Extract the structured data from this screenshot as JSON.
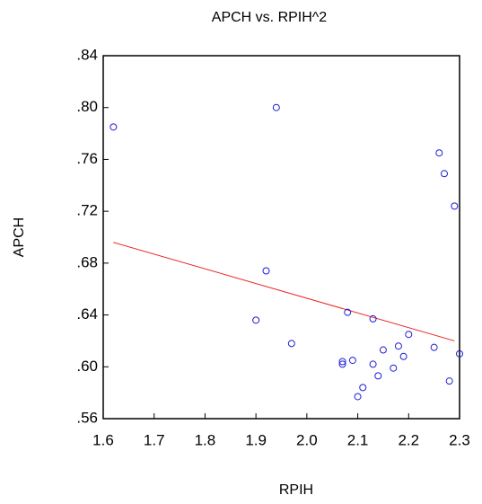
{
  "chart_data": {
    "type": "scatter",
    "title": "APCH vs. RPIH^2",
    "x_label": "RPIH",
    "y_label": "APCH",
    "x": [
      1.62,
      1.94,
      2.26,
      2.27,
      2.29,
      1.92,
      1.9,
      1.97,
      2.08,
      2.13,
      2.07,
      2.07,
      2.09,
      2.1,
      2.11,
      2.13,
      2.14,
      2.15,
      2.17,
      2.18,
      2.19,
      2.2,
      2.25,
      2.28,
      2.3
    ],
    "y": [
      0.785,
      0.8,
      0.765,
      0.749,
      0.724,
      0.674,
      0.636,
      0.618,
      0.642,
      0.637,
      0.604,
      0.602,
      0.605,
      0.577,
      0.584,
      0.602,
      0.593,
      0.613,
      0.599,
      0.616,
      0.608,
      0.625,
      0.615,
      0.589,
      0.61
    ],
    "color": "#1f1fd6",
    "fit_line": {
      "color": "#e8231f",
      "x": [
        1.62,
        2.29
      ],
      "y": [
        0.696,
        0.62
      ]
    },
    "xlim": [
      1.6,
      2.3
    ],
    "ylim": [
      0.56,
      0.84
    ],
    "xticks": [
      1.6,
      1.7,
      1.8,
      1.9,
      {
        "value": 2.0,
        "label": "2.0"
      },
      2.1,
      2.2,
      2.3
    ],
    "yticks": [
      {
        "value": 0.56,
        "label": ".56"
      },
      {
        "value": 0.6,
        "label": ".60"
      },
      {
        "value": 0.64,
        "label": ".64"
      },
      {
        "value": 0.68,
        "label": ".68"
      },
      {
        "value": 0.72,
        "label": ".72"
      },
      {
        "value": 0.76,
        "label": ".76"
      },
      {
        "value": 0.8,
        "label": ".80"
      },
      {
        "value": 0.84,
        "label": ".84"
      }
    ]
  }
}
